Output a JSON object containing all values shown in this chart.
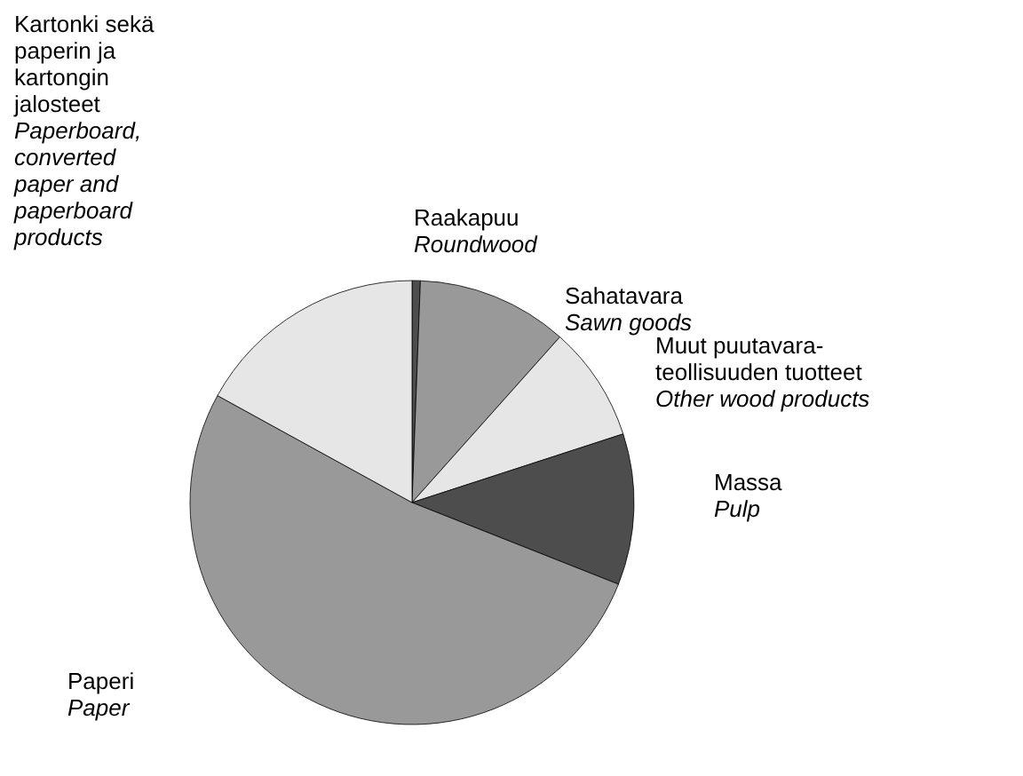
{
  "chart_data": {
    "type": "pie",
    "categories": [
      "Raakapuu\nRoundwood",
      "Sahatavara\nSawn goods",
      "Muut puutavara-teollisuuden tuotteet\nOther wood products",
      "Massa\nPulp",
      "Paperi\nPaper",
      "Kartonki sekä paperin ja kartongin jalosteet\nPaperboard, converted paper and paperboard products"
    ],
    "values": [
      0.6,
      11,
      8.4,
      11,
      52,
      17
    ],
    "colors": [
      "#4d4d4d",
      "#999999",
      "#e6e6e6",
      "#4d4d4d",
      "#999999",
      "#e6e6e6"
    ]
  }
}
